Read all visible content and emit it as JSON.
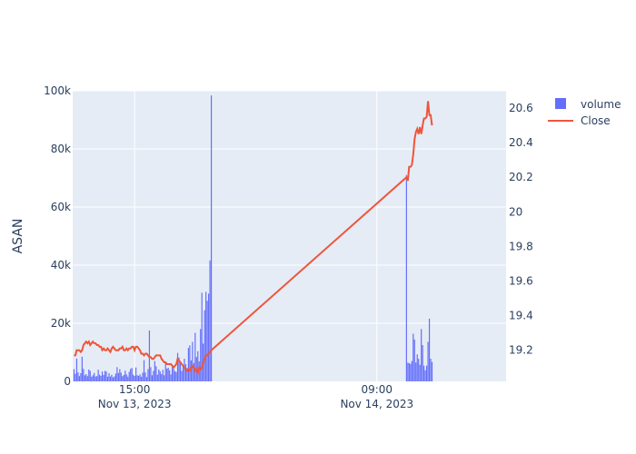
{
  "chart_data": {
    "type": "bar+line",
    "title": "",
    "ylabel_left": "ASAN",
    "ylabel_right": "",
    "x_ticks": [
      {
        "line1": "15:00",
        "line2": "Nov 13, 2023",
        "time": 3.0
      },
      {
        "line1": "09:00",
        "line2": "Nov 14, 2023",
        "time": 21.0
      }
    ],
    "x_range": [
      -1.6,
      30.6
    ],
    "y_left": {
      "range": [
        0,
        100000
      ],
      "ticks": [
        0,
        20000,
        40000,
        60000,
        80000,
        100000
      ],
      "tick_labels": [
        "0",
        "20k",
        "40k",
        "60k",
        "80k",
        "100k"
      ]
    },
    "y_right": {
      "range": [
        19.02,
        20.7
      ],
      "ticks": [
        19.2,
        19.4,
        19.6,
        19.8,
        20.0,
        20.2,
        20.4,
        20.6
      ],
      "tick_labels": [
        "19.2",
        "19.4",
        "19.6",
        "19.8",
        "20",
        "20.2",
        "20.4",
        "20.6"
      ]
    },
    "legend": {
      "position": "top-right",
      "entries": [
        "volume",
        "Close"
      ]
    },
    "colors": {
      "volume": "#636efa",
      "close": "#ef553b",
      "plot_bg": "#e5ecf6",
      "grid": "#ffffff",
      "text": "#2a3f5f"
    },
    "series": [
      {
        "name": "volume",
        "kind": "bar",
        "axis": "left",
        "points": [
          [
            -1.5,
            4200
          ],
          [
            -1.4,
            2600
          ],
          [
            -1.3,
            7800
          ],
          [
            -1.2,
            3100
          ],
          [
            -1.1,
            1800
          ],
          [
            -1.0,
            2800
          ],
          [
            -0.9,
            8500
          ],
          [
            -0.8,
            4300
          ],
          [
            -0.7,
            2100
          ],
          [
            -0.6,
            2500
          ],
          [
            -0.5,
            1800
          ],
          [
            -0.4,
            4100
          ],
          [
            -0.3,
            3600
          ],
          [
            -0.2,
            1600
          ],
          [
            -0.1,
            2100
          ],
          [
            0.0,
            2900
          ],
          [
            0.1,
            1700
          ],
          [
            0.2,
            1800
          ],
          [
            0.3,
            4000
          ],
          [
            0.4,
            2300
          ],
          [
            0.5,
            1900
          ],
          [
            0.6,
            3400
          ],
          [
            0.7,
            2200
          ],
          [
            0.8,
            3600
          ],
          [
            0.9,
            3400
          ],
          [
            1.0,
            1600
          ],
          [
            1.1,
            2800
          ],
          [
            1.2,
            1700
          ],
          [
            1.3,
            2300
          ],
          [
            1.4,
            1400
          ],
          [
            1.5,
            1700
          ],
          [
            1.6,
            2700
          ],
          [
            1.7,
            4900
          ],
          [
            1.8,
            2900
          ],
          [
            1.9,
            4200
          ],
          [
            2.0,
            3000
          ],
          [
            2.1,
            1800
          ],
          [
            2.2,
            2200
          ],
          [
            2.3,
            3700
          ],
          [
            2.4,
            2400
          ],
          [
            2.5,
            1600
          ],
          [
            2.6,
            3300
          ],
          [
            2.7,
            4300
          ],
          [
            2.8,
            4600
          ],
          [
            2.9,
            2300
          ],
          [
            3.0,
            1900
          ],
          [
            3.1,
            4800
          ],
          [
            3.2,
            2100
          ],
          [
            3.3,
            1900
          ],
          [
            3.4,
            2400
          ],
          [
            3.5,
            1600
          ],
          [
            3.6,
            3000
          ],
          [
            3.7,
            7300
          ],
          [
            3.8,
            3100
          ],
          [
            3.9,
            1500
          ],
          [
            4.0,
            4200
          ],
          [
            4.1,
            17500
          ],
          [
            4.2,
            4900
          ],
          [
            4.3,
            2100
          ],
          [
            4.4,
            3600
          ],
          [
            4.5,
            7000
          ],
          [
            4.6,
            5200
          ],
          [
            4.7,
            2300
          ],
          [
            4.8,
            4100
          ],
          [
            4.9,
            3400
          ],
          [
            5.0,
            2500
          ],
          [
            5.1,
            4000
          ],
          [
            5.2,
            2100
          ],
          [
            5.3,
            6800
          ],
          [
            5.4,
            4400
          ],
          [
            5.5,
            4700
          ],
          [
            5.6,
            3800
          ],
          [
            5.7,
            2400
          ],
          [
            5.8,
            5100
          ],
          [
            5.9,
            4300
          ],
          [
            6.0,
            3500
          ],
          [
            6.1,
            3200
          ],
          [
            6.2,
            9800
          ],
          [
            6.3,
            8200
          ],
          [
            6.4,
            6100
          ],
          [
            6.5,
            3600
          ],
          [
            6.6,
            5200
          ],
          [
            6.7,
            7800
          ],
          [
            6.8,
            5900
          ],
          [
            6.9,
            4600
          ],
          [
            7.0,
            11500
          ],
          [
            7.1,
            12400
          ],
          [
            7.2,
            7200
          ],
          [
            7.3,
            13600
          ],
          [
            7.4,
            6300
          ],
          [
            7.5,
            16700
          ],
          [
            7.6,
            8400
          ],
          [
            7.7,
            10400
          ],
          [
            7.8,
            6900
          ],
          [
            7.9,
            18000
          ],
          [
            8.0,
            30500
          ],
          [
            8.1,
            13000
          ],
          [
            8.2,
            24500
          ],
          [
            8.3,
            30800
          ],
          [
            8.4,
            27700
          ],
          [
            8.5,
            30200
          ],
          [
            8.6,
            41600
          ],
          [
            8.7,
            98400
          ],
          [
            23.2,
            71000
          ],
          [
            23.3,
            6400
          ],
          [
            23.4,
            6300
          ],
          [
            23.5,
            6000
          ],
          [
            23.6,
            7000
          ],
          [
            23.7,
            16400
          ],
          [
            23.8,
            14400
          ],
          [
            23.9,
            6500
          ],
          [
            24.0,
            9300
          ],
          [
            24.1,
            7800
          ],
          [
            24.2,
            5700
          ],
          [
            24.3,
            18000
          ],
          [
            24.4,
            12500
          ],
          [
            24.5,
            5400
          ],
          [
            24.6,
            3800
          ],
          [
            24.7,
            5400
          ],
          [
            24.8,
            13600
          ],
          [
            24.9,
            21600
          ],
          [
            25.0,
            7800
          ],
          [
            25.1,
            6700
          ]
        ]
      },
      {
        "name": "Close",
        "kind": "line",
        "axis": "right",
        "points": [
          [
            -1.5,
            19.17
          ],
          [
            -1.4,
            19.17
          ],
          [
            -1.3,
            19.2
          ],
          [
            -1.2,
            19.2
          ],
          [
            -1.1,
            19.2
          ],
          [
            -1.0,
            19.19
          ],
          [
            -0.9,
            19.2
          ],
          [
            -0.8,
            19.23
          ],
          [
            -0.7,
            19.24
          ],
          [
            -0.6,
            19.25
          ],
          [
            -0.5,
            19.24
          ],
          [
            -0.4,
            19.25
          ],
          [
            -0.3,
            19.23
          ],
          [
            -0.2,
            19.24
          ],
          [
            -0.1,
            19.25
          ],
          [
            0.0,
            19.24
          ],
          [
            0.1,
            19.24
          ],
          [
            0.2,
            19.23
          ],
          [
            0.3,
            19.23
          ],
          [
            0.4,
            19.22
          ],
          [
            0.5,
            19.22
          ],
          [
            0.6,
            19.2
          ],
          [
            0.7,
            19.21
          ],
          [
            0.8,
            19.2
          ],
          [
            0.9,
            19.2
          ],
          [
            1.0,
            19.21
          ],
          [
            1.1,
            19.2
          ],
          [
            1.2,
            19.19
          ],
          [
            1.3,
            19.21
          ],
          [
            1.4,
            19.22
          ],
          [
            1.5,
            19.21
          ],
          [
            1.6,
            19.2
          ],
          [
            1.7,
            19.2
          ],
          [
            1.8,
            19.2
          ],
          [
            1.9,
            19.21
          ],
          [
            2.0,
            19.21
          ],
          [
            2.1,
            19.22
          ],
          [
            2.2,
            19.2
          ],
          [
            2.3,
            19.2
          ],
          [
            2.4,
            19.21
          ],
          [
            2.5,
            19.2
          ],
          [
            2.6,
            19.21
          ],
          [
            2.7,
            19.21
          ],
          [
            2.8,
            19.22
          ],
          [
            2.9,
            19.22
          ],
          [
            3.0,
            19.2
          ],
          [
            3.1,
            19.22
          ],
          [
            3.2,
            19.22
          ],
          [
            3.3,
            19.21
          ],
          [
            3.4,
            19.2
          ],
          [
            3.5,
            19.18
          ],
          [
            3.6,
            19.18
          ],
          [
            3.7,
            19.17
          ],
          [
            3.8,
            19.18
          ],
          [
            3.9,
            19.18
          ],
          [
            4.0,
            19.17
          ],
          [
            4.1,
            19.16
          ],
          [
            4.2,
            19.16
          ],
          [
            4.3,
            19.15
          ],
          [
            4.4,
            19.15
          ],
          [
            4.5,
            19.16
          ],
          [
            4.6,
            19.17
          ],
          [
            4.7,
            19.17
          ],
          [
            4.8,
            19.17
          ],
          [
            4.9,
            19.17
          ],
          [
            5.0,
            19.15
          ],
          [
            5.1,
            19.14
          ],
          [
            5.2,
            19.13
          ],
          [
            5.3,
            19.13
          ],
          [
            5.4,
            19.12
          ],
          [
            5.5,
            19.12
          ],
          [
            5.6,
            19.12
          ],
          [
            5.7,
            19.12
          ],
          [
            5.8,
            19.11
          ],
          [
            5.9,
            19.1
          ],
          [
            6.0,
            19.11
          ],
          [
            6.1,
            19.12
          ],
          [
            6.2,
            19.15
          ],
          [
            6.3,
            19.14
          ],
          [
            6.4,
            19.13
          ],
          [
            6.5,
            19.12
          ],
          [
            6.6,
            19.11
          ],
          [
            6.7,
            19.1
          ],
          [
            6.8,
            19.09
          ],
          [
            6.9,
            19.08
          ],
          [
            7.0,
            19.09
          ],
          [
            7.1,
            19.08
          ],
          [
            7.2,
            19.1
          ],
          [
            7.3,
            19.11
          ],
          [
            7.4,
            19.1
          ],
          [
            7.5,
            19.08
          ],
          [
            7.6,
            19.09
          ],
          [
            7.7,
            19.07
          ],
          [
            7.8,
            19.1
          ],
          [
            7.9,
            19.09
          ],
          [
            8.0,
            19.1
          ],
          [
            8.1,
            19.13
          ],
          [
            8.2,
            19.15
          ],
          [
            8.3,
            19.17
          ],
          [
            8.4,
            19.17
          ],
          [
            8.5,
            19.18
          ],
          [
            8.6,
            19.19
          ],
          [
            8.7,
            19.2
          ],
          [
            23.2,
            20.2
          ],
          [
            23.3,
            20.18
          ],
          [
            23.4,
            20.26
          ],
          [
            23.5,
            20.26
          ],
          [
            23.6,
            20.27
          ],
          [
            23.7,
            20.33
          ],
          [
            23.8,
            20.42
          ],
          [
            23.9,
            20.46
          ],
          [
            24.0,
            20.48
          ],
          [
            24.1,
            20.45
          ],
          [
            24.2,
            20.49
          ],
          [
            24.3,
            20.45
          ],
          [
            24.4,
            20.5
          ],
          [
            24.5,
            20.54
          ],
          [
            24.6,
            20.54
          ],
          [
            24.7,
            20.55
          ],
          [
            24.8,
            20.64
          ],
          [
            24.9,
            20.56
          ],
          [
            25.0,
            20.56
          ],
          [
            25.1,
            20.5
          ]
        ]
      }
    ]
  }
}
